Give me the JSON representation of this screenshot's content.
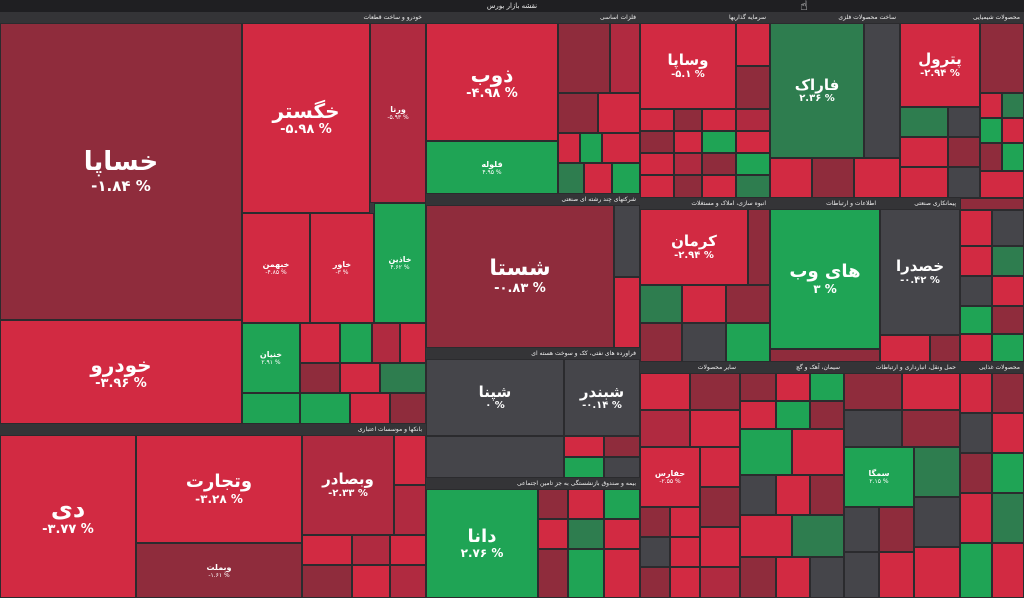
{
  "header": {
    "title": "نقشه بازار بورس"
  },
  "sectors": {
    "auto": "خودرو و ساخت قطعات",
    "metals": "فلزات اساسی",
    "investment": "سرمایه گذاریها",
    "computer": "ساخت محصولات فلزی",
    "chemical": "محصولات شیمیایی",
    "holding": "شرکتهای چند رشته ای صنعتی",
    "mass": "انبوه سازی، املاک و مستغلات",
    "info": "اطلاعات و ارتباطات",
    "contract": "پیمانکاری صنعتی",
    "banks": "بانکها و موسسات اعتباری",
    "oil": "فراورده های نفتی، کک و سوخت هسته ای",
    "insurance": "بیمه و صندوق بازنشستگی به جز تامین اجتماعی",
    "cement": "سیمان، آهک و گچ",
    "pharma": "سایر محصولات",
    "transport": "حمل ونقل، انبارداری و ارتباطات",
    "food": "محصولات غذایی"
  },
  "tiles": {
    "khesapa": {
      "name": "خساپا",
      "pct": "-۱.۸۴ %"
    },
    "khegostar": {
      "name": "خگستر",
      "pct": "-۵.۹۸ %"
    },
    "khodro": {
      "name": "خودرو",
      "pct": "-۳.۹۶ %"
    },
    "khebahman": {
      "name": "خبهمن",
      "pct": "-۴.۸۵ %"
    },
    "khavar": {
      "name": "خاور",
      "pct": "-۳ %"
    },
    "khadin": {
      "name": "خاذین",
      "pct": "۴.۶۲ %"
    },
    "kheniro": {
      "name": "خنیان",
      "pct": "۲.۹۱ %"
    },
    "vorna": {
      "name": "ورنا",
      "pct": "-۵.۹۳ %"
    },
    "zob": {
      "name": "ذوب",
      "pct": "-۴.۹۸ %"
    },
    "fouladh": {
      "name": "فلوله",
      "pct": "۴.۹۵ %"
    },
    "vasapa": {
      "name": "وساپا",
      "pct": "-۵.۱ %"
    },
    "farak": {
      "name": "فاراک",
      "pct": "۲.۳۶ %"
    },
    "petrol": {
      "name": "پترول",
      "pct": "-۲.۹۴ %"
    },
    "shasta": {
      "name": "شستا",
      "pct": "-۰.۸۳ %"
    },
    "kerman": {
      "name": "کرمان",
      "pct": "-۲.۹۴ %"
    },
    "hiweb": {
      "name": "های وب",
      "pct": "۳ %"
    },
    "khasadra": {
      "name": "خصدرا",
      "pct": "-۰.۴۲ %"
    },
    "vatejarat": {
      "name": "وتجارت",
      "pct": "-۳.۲۸ %"
    },
    "di": {
      "name": "دی",
      "pct": "-۳.۷۷ %"
    },
    "vebsader": {
      "name": "وبصادر",
      "pct": "-۲.۳۳ %"
    },
    "vebmelat": {
      "name": "وبملت",
      "pct": "-۱.۶۱ %"
    },
    "shapna": {
      "name": "شپنا",
      "pct": "۰ %"
    },
    "shebandar": {
      "name": "شبندر",
      "pct": "-۰.۱۴ %"
    },
    "dana": {
      "name": "دانا",
      "pct": "۲.۷۶ %"
    },
    "simga": {
      "name": "سمگا",
      "pct": "۲.۱۵ %"
    },
    "hafars": {
      "name": "حفارس",
      "pct": "-۲.۵۵ %"
    }
  }
}
